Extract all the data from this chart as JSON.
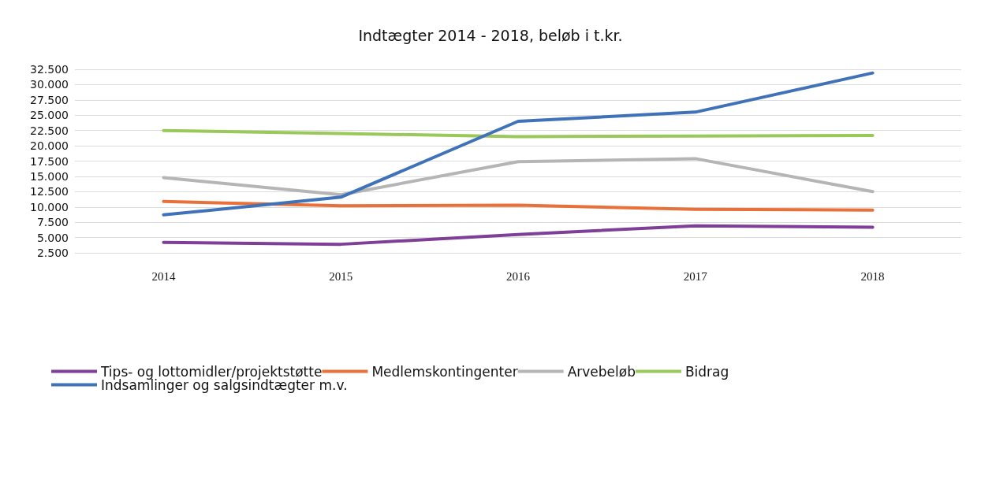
{
  "chart_data": {
    "type": "line",
    "title": "Indtægter 2014 - 2018, beløb i t.kr.",
    "categories": [
      "2014",
      "2015",
      "2016",
      "2017",
      "2018"
    ],
    "series": [
      {
        "name": "Tips- og lottomidler/projektstøtte",
        "color": "#7f3f98",
        "values": [
          4200,
          3900,
          5500,
          6900,
          6700
        ]
      },
      {
        "name": "Medlemskontingenter",
        "color": "#e8703a",
        "values": [
          10900,
          10200,
          10300,
          9600,
          9500
        ]
      },
      {
        "name": "Arvebeløb",
        "color": "#b5b5b5",
        "values": [
          14800,
          12000,
          17400,
          17900,
          12500
        ]
      },
      {
        "name": "Bidrag",
        "color": "#9bc85a",
        "values": [
          22500,
          22000,
          21500,
          21600,
          21700
        ]
      },
      {
        "name": "Indsamlinger og salgsindtægter m.v.",
        "color": "#3f72b8",
        "values": [
          8700,
          11600,
          24000,
          25500,
          31900
        ]
      }
    ],
    "ylim": [
      2500,
      32500
    ],
    "yticks": [
      {
        "value": 2500,
        "label": "2.500"
      },
      {
        "value": 5000,
        "label": "5.000"
      },
      {
        "value": 7500,
        "label": "7.500"
      },
      {
        "value": 10000,
        "label": "10.000"
      },
      {
        "value": 12500,
        "label": "12.500"
      },
      {
        "value": 15000,
        "label": "15.000"
      },
      {
        "value": 17500,
        "label": "17.500"
      },
      {
        "value": 20000,
        "label": "20.000"
      },
      {
        "value": 22500,
        "label": "22.500"
      },
      {
        "value": 25000,
        "label": "25.000"
      },
      {
        "value": 27500,
        "label": "27.500"
      },
      {
        "value": 30000,
        "label": "30.000"
      },
      {
        "value": 32500,
        "label": "32.500"
      }
    ],
    "grid": "y",
    "legend": "bottom left",
    "marker": "none",
    "line_style": "solid"
  }
}
